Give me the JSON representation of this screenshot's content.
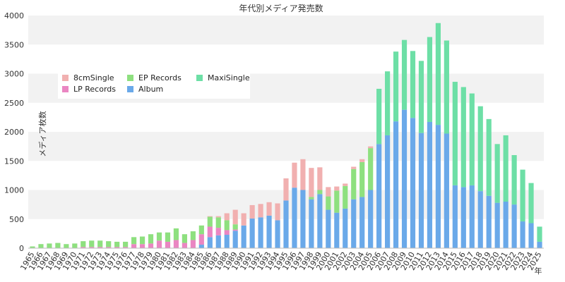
{
  "chart_data": {
    "type": "bar",
    "stacked": true,
    "title": "年代別メディア発売数",
    "xlabel": "年",
    "ylabel": "メディア枚数",
    "ylim": [
      0,
      4000
    ],
    "yticks": [
      0,
      500,
      1000,
      1500,
      2000,
      2500,
      3000,
      3500,
      4000
    ],
    "grid": "horizontal alternating bands",
    "legend_position": "top-left",
    "categories": [
      "1965",
      "1966",
      "1967",
      "1968",
      "1969",
      "1970",
      "1971",
      "1972",
      "1973",
      "1974",
      "1975",
      "1976",
      "1977",
      "1978",
      "1979",
      "1980",
      "1981",
      "1982",
      "1983",
      "1984",
      "1985",
      "1986",
      "1987",
      "1988",
      "1989",
      "1990",
      "1991",
      "1992",
      "1993",
      "1994",
      "1995",
      "1996",
      "1997",
      "1998",
      "1999",
      "2000",
      "2001",
      "2002",
      "2003",
      "2004",
      "2005",
      "2006",
      "2007",
      "2008",
      "2009",
      "2010",
      "2011",
      "2012",
      "2013",
      "2014",
      "2015",
      "2016",
      "2017",
      "2018",
      "2019",
      "2020",
      "2021",
      "2022",
      "2023",
      "2024",
      "2025"
    ],
    "series": [
      {
        "name": "Album",
        "color": "#6aa9e9",
        "values": [
          0,
          0,
          0,
          0,
          0,
          0,
          0,
          0,
          0,
          0,
          0,
          0,
          0,
          0,
          0,
          0,
          0,
          0,
          0,
          0,
          60,
          190,
          220,
          230,
          300,
          390,
          510,
          530,
          560,
          480,
          820,
          1040,
          1000,
          840,
          930,
          660,
          610,
          680,
          840,
          880,
          1000,
          1790,
          1940,
          2180,
          2380,
          2240,
          1980,
          2170,
          2120,
          1970,
          1080,
          1050,
          1080,
          980,
          900,
          780,
          800,
          750,
          460,
          430,
          110
        ]
      },
      {
        "name": "LP Records",
        "color": "#ea86c2",
        "values": [
          0,
          0,
          0,
          0,
          0,
          0,
          20,
          20,
          20,
          20,
          20,
          20,
          70,
          70,
          80,
          130,
          110,
          140,
          90,
          140,
          180,
          180,
          130,
          80,
          20,
          0,
          0,
          0,
          0,
          0,
          0,
          0,
          0,
          0,
          0,
          0,
          0,
          0,
          0,
          0,
          0,
          0,
          0,
          0,
          0,
          0,
          0,
          0,
          0,
          0,
          0,
          0,
          0,
          0,
          0,
          0,
          0,
          0,
          0,
          0,
          0
        ]
      },
      {
        "name": "EP Records",
        "color": "#8ee07f",
        "values": [
          30,
          70,
          80,
          90,
          70,
          80,
          100,
          110,
          110,
          100,
          90,
          90,
          120,
          130,
          160,
          140,
          160,
          200,
          150,
          150,
          150,
          170,
          180,
          170,
          90,
          0,
          0,
          0,
          0,
          0,
          0,
          0,
          0,
          40,
          70,
          230,
          380,
          390,
          520,
          600,
          720,
          0,
          0,
          0,
          0,
          0,
          0,
          0,
          0,
          0,
          0,
          0,
          0,
          0,
          0,
          0,
          0,
          0,
          0,
          0,
          0
        ]
      },
      {
        "name": "8cmSingle",
        "color": "#f1b0b0",
        "values": [
          0,
          0,
          0,
          0,
          0,
          0,
          0,
          0,
          0,
          0,
          0,
          0,
          0,
          0,
          0,
          0,
          0,
          0,
          0,
          0,
          0,
          10,
          20,
          120,
          250,
          210,
          230,
          230,
          230,
          290,
          380,
          430,
          530,
          500,
          390,
          160,
          70,
          40,
          40,
          50,
          30,
          0,
          0,
          0,
          0,
          0,
          0,
          0,
          0,
          0,
          0,
          0,
          0,
          0,
          0,
          0,
          0,
          0,
          0,
          0,
          0
        ]
      },
      {
        "name": "MaxiSingle",
        "color": "#6ddfa6",
        "values": [
          0,
          0,
          0,
          0,
          0,
          0,
          0,
          0,
          0,
          0,
          0,
          0,
          0,
          0,
          0,
          0,
          0,
          0,
          0,
          0,
          0,
          0,
          0,
          0,
          0,
          0,
          0,
          0,
          0,
          0,
          0,
          0,
          0,
          0,
          0,
          0,
          0,
          0,
          0,
          0,
          0,
          950,
          1100,
          1200,
          1200,
          1150,
          1240,
          1460,
          1750,
          1600,
          1780,
          1720,
          1580,
          1460,
          1320,
          1010,
          1140,
          850,
          890,
          690,
          260
        ]
      }
    ],
    "legend_order": [
      "8cmSingle",
      "EP Records",
      "MaxiSingle",
      "LP Records",
      "Album"
    ]
  }
}
